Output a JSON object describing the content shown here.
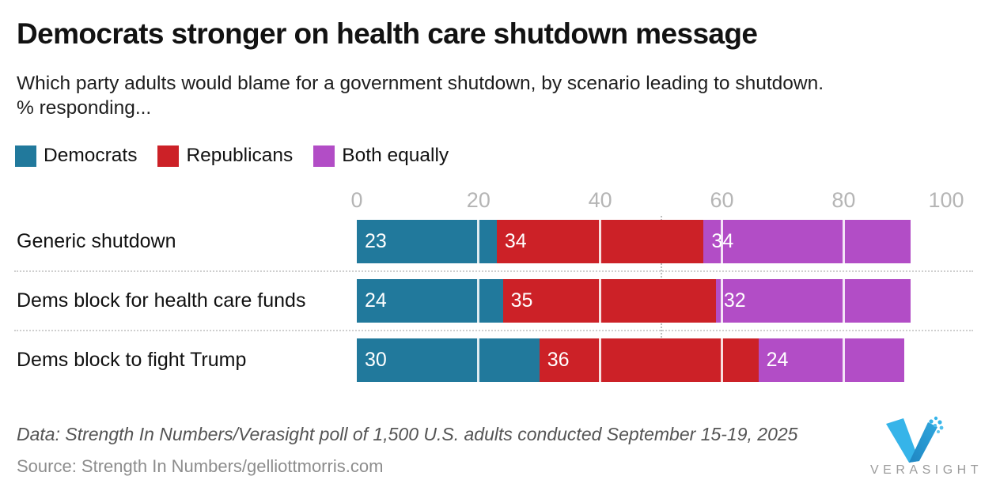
{
  "header": {
    "title": "Democrats stronger on health care shutdown message",
    "subtitle_line1": "Which party adults would blame for a government shutdown, by scenario leading to shutdown.",
    "subtitle_line2": "% responding..."
  },
  "legend": [
    {
      "label": "Democrats",
      "color": "#21799c"
    },
    {
      "label": "Republicans",
      "color": "#cc2127"
    },
    {
      "label": "Both equally",
      "color": "#b24dc6"
    }
  ],
  "chart_data": {
    "type": "bar",
    "orientation": "horizontal",
    "stacked": true,
    "title": "Democrats stronger on health care shutdown message",
    "categories": [
      "Generic shutdown",
      "Dems block for health care funds",
      "Dems block to fight Trump"
    ],
    "series": [
      {
        "name": "Democrats",
        "color": "#21799c",
        "values": [
          23,
          24,
          30
        ]
      },
      {
        "name": "Republicans",
        "color": "#cc2127",
        "values": [
          34,
          35,
          36
        ]
      },
      {
        "name": "Both equally",
        "color": "#b24dc6",
        "values": [
          34,
          32,
          24
        ]
      }
    ],
    "row_totals": [
      91,
      91,
      90
    ],
    "xlim": [
      0,
      100
    ],
    "x_ticks": [
      0,
      20,
      40,
      60,
      80,
      100
    ],
    "reference_line_x": 50,
    "value_labels": "inside-left, white",
    "grid": "white tick lines over bars",
    "legend_position": "top-left"
  },
  "footer": {
    "data_note": "Data: Strength In Numbers/Verasight poll of 1,500 U.S. adults conducted September 15-19, 2025",
    "source": "Source: Strength In Numbers/gelliottmorris.com",
    "brand": "VERASIGHT"
  },
  "colors": {
    "democrats": "#21799c",
    "republicans": "#cc2127",
    "both_equally": "#b24dc6",
    "axis_label": "#b5b5b5",
    "separator": "#cfcfcf",
    "logo_light_blue": "#36b4e9",
    "logo_dark_blue": "#1f86c2"
  }
}
